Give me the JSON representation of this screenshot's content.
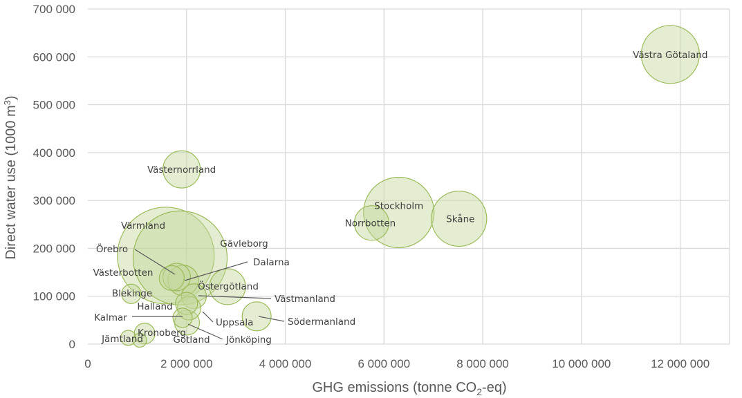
{
  "chart_data": {
    "type": "bubble",
    "title": "",
    "xlabel_prefix": "GHG emissions  (tonne CO",
    "xlabel_sub": "2",
    "xlabel_suffix": "-eq)",
    "ylabel_prefix": "Direct water use (1000 m",
    "ylabel_sup": "3",
    "ylabel_suffix": ")",
    "xlim": [
      0,
      13000000
    ],
    "ylim": [
      0,
      700000
    ],
    "x_ticks": [
      0,
      2000000,
      4000000,
      6000000,
      8000000,
      10000000,
      12000000
    ],
    "x_tick_labels": [
      "0",
      "2 000 000",
      "4 000 000",
      "6 000 000",
      "8 000 000",
      "10 000 000",
      "12 000 000"
    ],
    "y_ticks": [
      0,
      100000,
      200000,
      300000,
      400000,
      500000,
      600000,
      700000
    ],
    "y_tick_labels": [
      "0",
      "100 000",
      "200 000",
      "300 000",
      "400 000",
      "500 000",
      "600 000",
      "700 000"
    ],
    "grid": true,
    "legend": "none",
    "bubble_color": "#c3d69b",
    "bubble_edge": "#9bbb59",
    "series": [
      {
        "name": "Västra Götaland",
        "x": 11800000,
        "y": 605000,
        "size": 42
      },
      {
        "name": "Västernorrland",
        "x": 1900000,
        "y": 365000,
        "size": 27
      },
      {
        "name": "Stockholm",
        "x": 6300000,
        "y": 275000,
        "size": 51
      },
      {
        "name": "Skåne",
        "x": 7520000,
        "y": 262000,
        "size": 40
      },
      {
        "name": "Norrbotten",
        "x": 5750000,
        "y": 253000,
        "size": 25
      },
      {
        "name": "Värmland",
        "x": 1580000,
        "y": 185000,
        "size": 70
      },
      {
        "name": "Gävleborg",
        "x": 1870000,
        "y": 180000,
        "size": 68
      },
      {
        "name": "Örebro",
        "x": 1800000,
        "y": 140000,
        "size": 20
      },
      {
        "name": "Dalarna",
        "x": 1930000,
        "y": 133000,
        "size": 22
      },
      {
        "name": "Västerbotten",
        "x": 1700000,
        "y": 138000,
        "size": 18
      },
      {
        "name": "Östergötland",
        "x": 2830000,
        "y": 120000,
        "size": 26
      },
      {
        "name": "Västmanland",
        "x": 2150000,
        "y": 100000,
        "size": 18
      },
      {
        "name": "Blekinge",
        "x": 880000,
        "y": 105000,
        "size": 14
      },
      {
        "name": "Halland",
        "x": 2000000,
        "y": 85000,
        "size": 16
      },
      {
        "name": "Uppsala",
        "x": 2050000,
        "y": 75000,
        "size": 17
      },
      {
        "name": "Kalmar",
        "x": 1920000,
        "y": 55000,
        "size": 14
      },
      {
        "name": "Södermanland",
        "x": 3420000,
        "y": 58000,
        "size": 21
      },
      {
        "name": "Jönköping",
        "x": 2010000,
        "y": 45000,
        "size": 18
      },
      {
        "name": "Kronoberg",
        "x": 1150000,
        "y": 22000,
        "size": 15
      },
      {
        "name": "Jämtland",
        "x": 820000,
        "y": 13000,
        "size": 11
      },
      {
        "name": "Gotland",
        "x": 1050000,
        "y": 8000,
        "size": 10
      }
    ]
  }
}
